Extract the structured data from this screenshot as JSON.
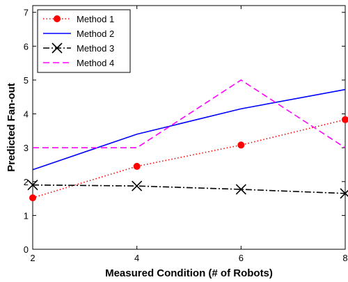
{
  "chart_data": {
    "type": "line",
    "title": "",
    "xlabel": "Measured Condition (# of Robots)",
    "ylabel": "Predicted Fan-out",
    "xlim": [
      2,
      8
    ],
    "ylim": [
      0,
      7.2
    ],
    "xticks": [
      2,
      4,
      6,
      8
    ],
    "yticks": [
      0,
      1,
      2,
      3,
      4,
      5,
      6,
      7
    ],
    "grid": false,
    "legend_position": "top-left",
    "series": [
      {
        "name": "Method 1",
        "x": [
          2,
          4,
          6,
          8
        ],
        "y": [
          1.52,
          2.45,
          3.08,
          3.83
        ],
        "color": "#ff0000",
        "line_style": "dotted",
        "marker": "filled-circle"
      },
      {
        "name": "Method 2",
        "x": [
          2,
          4,
          6,
          8
        ],
        "y": [
          2.35,
          3.4,
          4.15,
          4.72
        ],
        "color": "#0000ff",
        "line_style": "solid",
        "marker": "none"
      },
      {
        "name": "Method 3",
        "x": [
          2,
          4,
          6,
          8
        ],
        "y": [
          1.9,
          1.87,
          1.77,
          1.65
        ],
        "color": "#000000",
        "line_style": "dash-dot",
        "marker": "x"
      },
      {
        "name": "Method 4",
        "x": [
          2,
          4,
          6,
          8
        ],
        "y": [
          3.0,
          3.0,
          5.0,
          3.0
        ],
        "color": "#ff00ff",
        "line_style": "dashed",
        "marker": "none"
      }
    ]
  }
}
